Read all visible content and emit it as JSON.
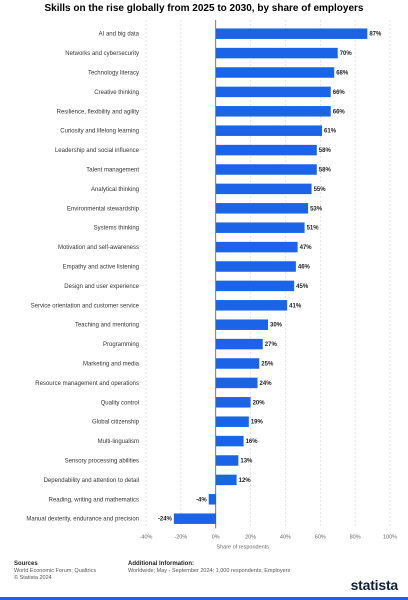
{
  "chart_data": {
    "type": "bar",
    "orientation": "horizontal",
    "title": "Skills on the rise globally from 2025 to 2030, by share of employers",
    "xlabel": "Share of respondents",
    "xlim": [
      -40,
      100
    ],
    "xticks": [
      "-40%",
      "-20%",
      "0%",
      "20%",
      "40%",
      "60%",
      "80%",
      "100%"
    ],
    "grid": true,
    "bar_color": "#1b64e8",
    "categories": [
      "AI and big data",
      "Networks and cybersecurity",
      "Technology literacy",
      "Creative thinking",
      "Resilience, flexibility and agility",
      "Curiosity and lifelong learning",
      "Leadership and social influence",
      "Talent management",
      "Analytical thinking",
      "Environmental stewardship",
      "Systems thinking",
      "Motivation and self-awareness",
      "Empathy and active listening",
      "Design and user experience",
      "Service orientation and customer service",
      "Teaching and mentoring",
      "Programming",
      "Marketing and media",
      "Resource management and operations",
      "Quality control",
      "Global citizenship",
      "Multi-lingualism",
      "Sensory processing abilities",
      "Dependability and attention to detail",
      "Reading, writing and mathematics",
      "Manual dexterity, endurance and precision"
    ],
    "values": [
      87,
      70,
      68,
      66,
      66,
      61,
      58,
      58,
      55,
      53,
      51,
      47,
      46,
      45,
      41,
      30,
      27,
      25,
      24,
      20,
      19,
      16,
      13,
      12,
      -4,
      -24
    ],
    "value_labels": [
      "87%",
      "70%",
      "68%",
      "66%",
      "66%",
      "61%",
      "58%",
      "58%",
      "55%",
      "53%",
      "51%",
      "47%",
      "46%",
      "45%",
      "41%",
      "30%",
      "27%",
      "25%",
      "24%",
      "20%",
      "19%",
      "16%",
      "13%",
      "12%",
      "-4%",
      "-24%"
    ]
  },
  "footer": {
    "sources_heading": "Sources",
    "sources_line1": "World Economic Forum; Qualtrics",
    "sources_line2": "© Statista 2024",
    "info_heading": "Additional Information:",
    "info_line1": "Worldwide; May - September 2024; 1,000 respondents; Employers"
  },
  "brand": "statista"
}
